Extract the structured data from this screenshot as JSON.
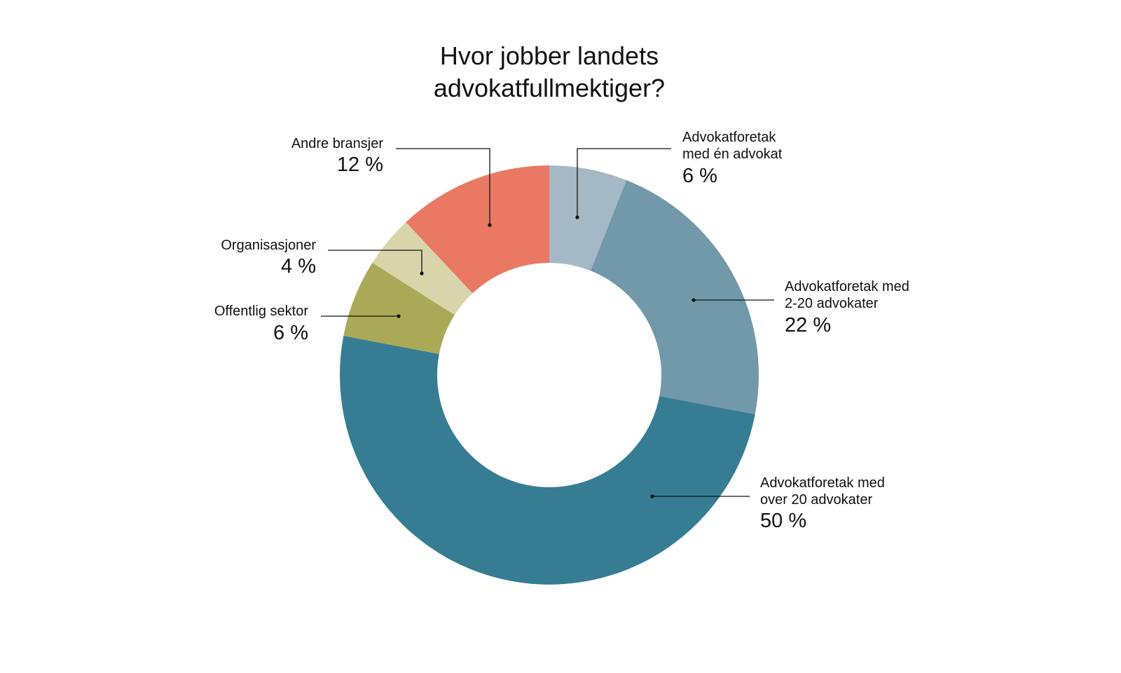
{
  "chart_data": {
    "type": "donut",
    "title": "Hvor jobber landets\nadvokatfullmektiger?",
    "categories": [
      "Advokatforetak\nmed én advokat",
      "Advokatforetak med\n2-20 advokater",
      "Advokatforetak med\nover 20 advokater",
      "Offentlig sektor",
      "Organisasjoner",
      "Andre bransjer"
    ],
    "values": [
      6,
      22,
      50,
      6,
      4,
      12
    ],
    "value_labels": [
      "6 %",
      "22 %",
      "50 %",
      "6 %",
      "4 %",
      "12 %"
    ],
    "colors": [
      "#a5b8c6",
      "#7299aa",
      "#367d94",
      "#aaa957",
      "#d9d5aa",
      "#e97962"
    ]
  }
}
